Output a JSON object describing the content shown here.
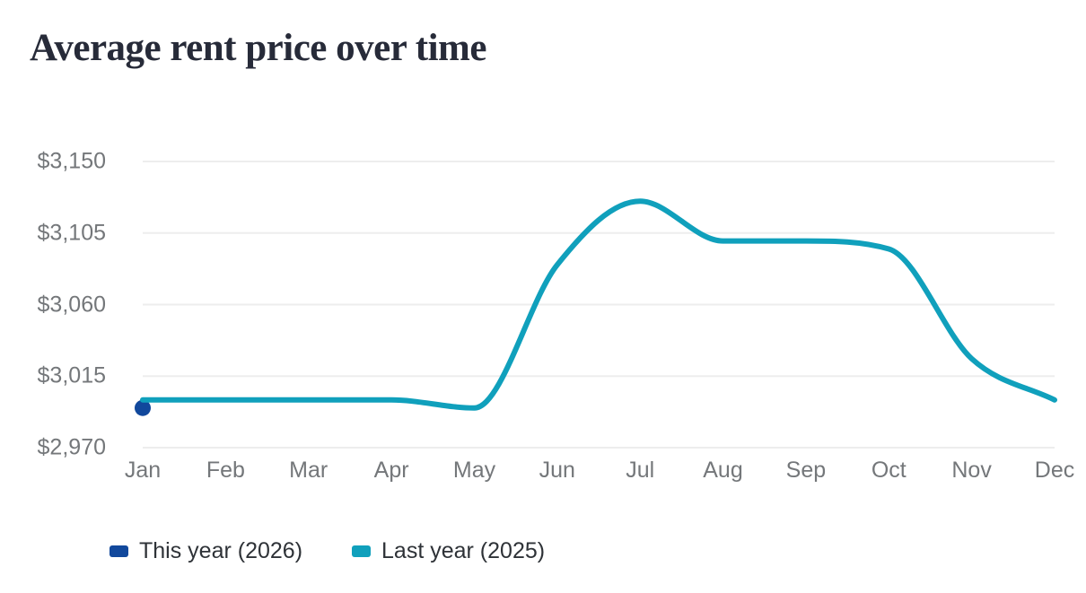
{
  "page": {
    "background": "#ffffff"
  },
  "chart_data": {
    "type": "line",
    "title": "Average rent price over time",
    "categories": [
      "Jan",
      "Feb",
      "Mar",
      "Apr",
      "May",
      "Jun",
      "Jul",
      "Aug",
      "Sep",
      "Oct",
      "Nov",
      "Dec"
    ],
    "xlabel": "",
    "ylabel": "",
    "ylim": [
      2970,
      3150
    ],
    "y_ticks": {
      "values": [
        3150,
        3105,
        3060,
        3015,
        2970
      ],
      "labels": [
        "$3,150",
        "$3,105",
        "$3,060",
        "$3,015",
        "$2,970"
      ]
    },
    "grid": "horizontal-only",
    "legend_position": "bottom-left",
    "series": [
      {
        "name": "This year (2026)",
        "color": "#11489c",
        "style": "point",
        "values": [
          2995,
          null,
          null,
          null,
          null,
          null,
          null,
          null,
          null,
          null,
          null,
          null
        ]
      },
      {
        "name": "Last year (2025)",
        "color": "#10a0bc",
        "style": "smooth-line",
        "values": [
          3000,
          3000,
          3000,
          3000,
          2995,
          3085,
          3125,
          3100,
          3100,
          3095,
          3026,
          3000
        ]
      }
    ]
  },
  "colors": {
    "title_text": "#272b39",
    "axis_label": "#74777a",
    "gridline": "#ededed",
    "legend_text": "#2e3237"
  }
}
